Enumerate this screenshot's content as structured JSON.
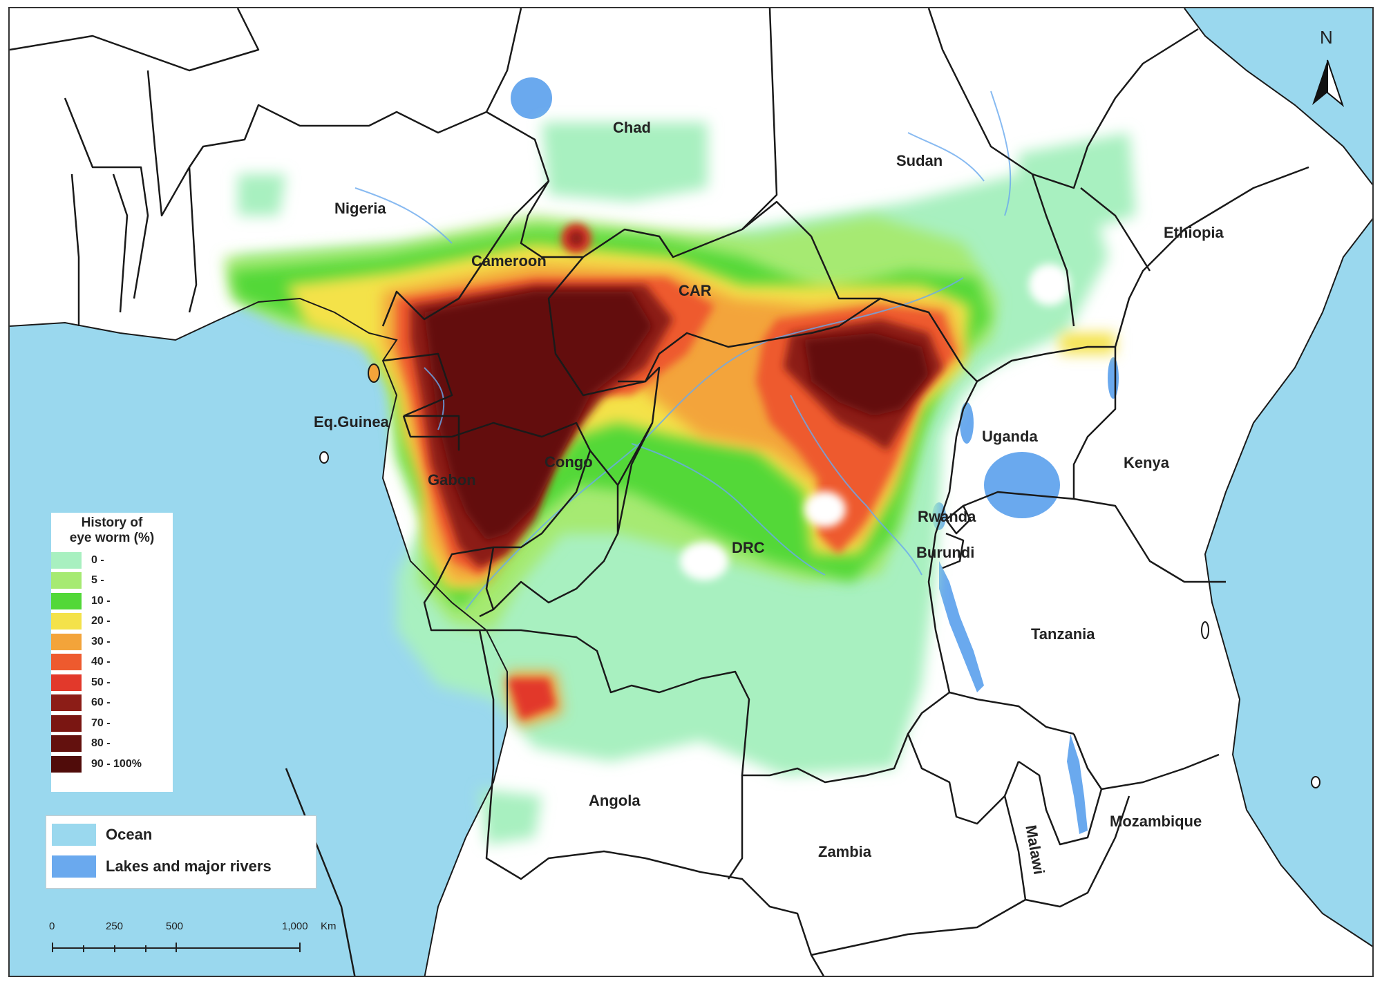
{
  "map": {
    "countries": [
      {
        "name": "Chad"
      },
      {
        "name": "Sudan"
      },
      {
        "name": "Nigeria"
      },
      {
        "name": "Ethiopia"
      },
      {
        "name": "Cameroon"
      },
      {
        "name": "CAR"
      },
      {
        "name": "Eq.Guinea"
      },
      {
        "name": "Uganda"
      },
      {
        "name": "Kenya"
      },
      {
        "name": "Congo"
      },
      {
        "name": "Gabon"
      },
      {
        "name": "Rwanda"
      },
      {
        "name": "DRC"
      },
      {
        "name": "Burundi"
      },
      {
        "name": "Tanzania"
      },
      {
        "name": "Angola"
      },
      {
        "name": "Mozambique"
      },
      {
        "name": "Malawi"
      },
      {
        "name": "Zambia"
      }
    ],
    "north_arrow": "N",
    "colors": {
      "ocean": "#9ad8ee",
      "lakes": "#6aa9ee",
      "land": "#ffffff",
      "border": "#1a1a1a"
    }
  },
  "legend": {
    "title_line1": "History of",
    "title_line2": "eye worm (%)",
    "classes": [
      {
        "label": "0 -",
        "color": "#a8f0c0"
      },
      {
        "label": "5 -",
        "color": "#a6ea72"
      },
      {
        "label": "10 -",
        "color": "#52d838"
      },
      {
        "label": "20 -",
        "color": "#f4e24a"
      },
      {
        "label": "30 -",
        "color": "#f3a43a"
      },
      {
        "label": "40 -",
        "color": "#ee5a2e"
      },
      {
        "label": "50 -",
        "color": "#e2392b"
      },
      {
        "label": "60 -",
        "color": "#8c1d17"
      },
      {
        "label": "70 -",
        "color": "#7a1612"
      },
      {
        "label": "80 -",
        "color": "#63110e"
      },
      {
        "label": "90 - 100%",
        "color": "#500c0a"
      }
    ]
  },
  "key": {
    "items": [
      {
        "label": "Ocean",
        "color": "#9ad8ee"
      },
      {
        "label": "Lakes and major rivers",
        "color": "#6aa9ee"
      }
    ]
  },
  "scale_bar": {
    "ticks": [
      "0",
      "250",
      "500",
      "1,000"
    ],
    "unit": "Km"
  }
}
